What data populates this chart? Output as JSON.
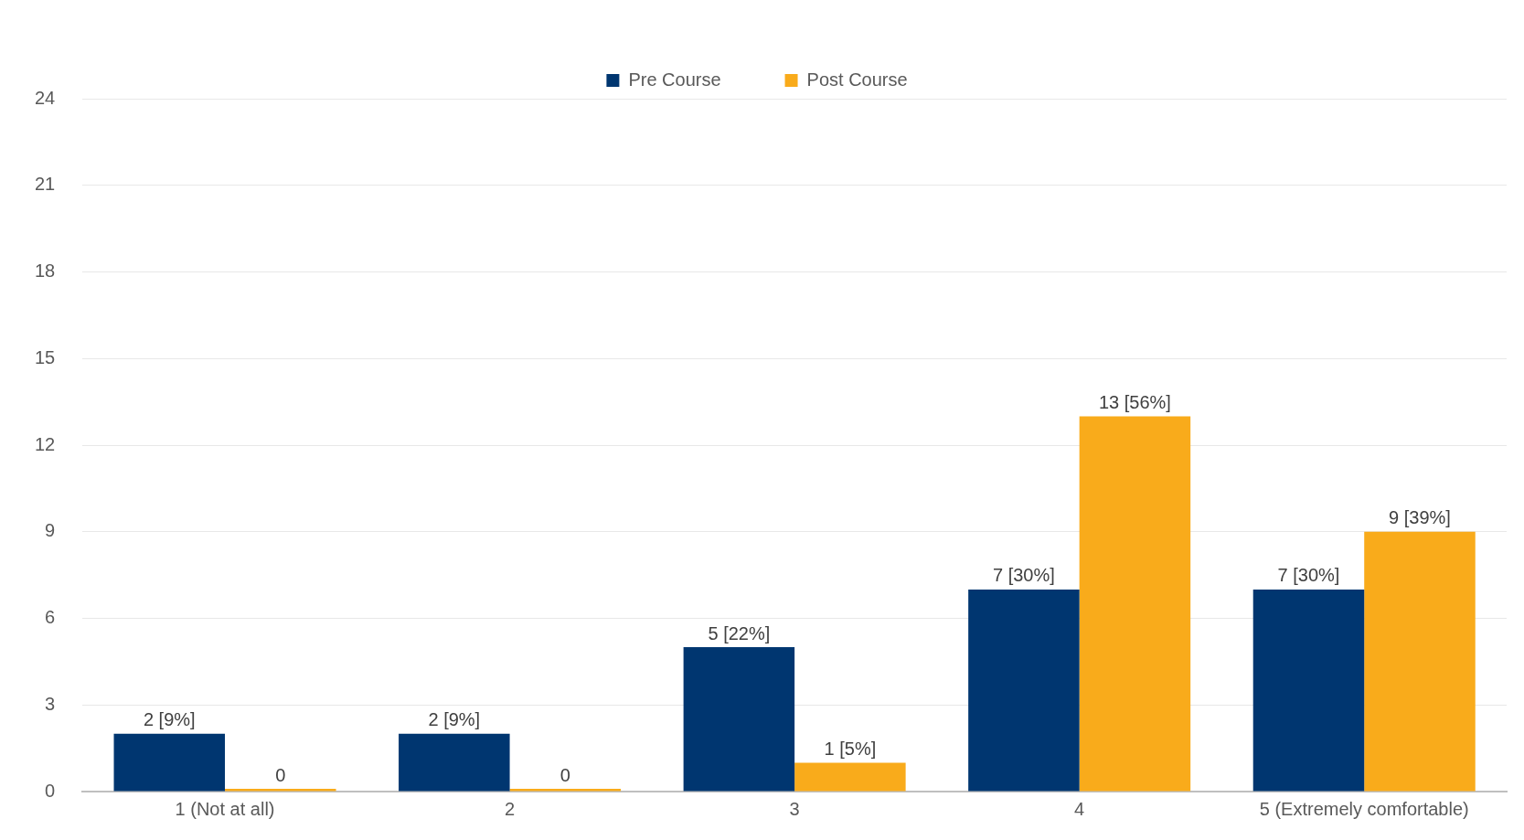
{
  "chart_data": {
    "type": "bar",
    "categories": [
      "1 (Not at all)",
      "2",
      "3",
      "4",
      "5 (Extremely comfortable)"
    ],
    "series": [
      {
        "name": "Pre Course",
        "color": "#003670",
        "values": [
          2,
          2,
          5,
          7,
          7
        ],
        "value_labels": [
          "2 [9%]",
          "2 [9%]",
          "5 [22%]",
          "7 [30%]",
          "7 [30%]"
        ]
      },
      {
        "name": "Post Course",
        "color": "#f9ab1b",
        "values": [
          0,
          0,
          1,
          13,
          9
        ],
        "value_labels": [
          "0",
          "0",
          "1 [5%]",
          "13 [56%]",
          "9 [39%]"
        ]
      }
    ],
    "ylim": [
      0,
      24
    ],
    "yticks": [
      0,
      3,
      6,
      9,
      12,
      15,
      18,
      21,
      24
    ],
    "grid": "y",
    "legend": "top"
  }
}
